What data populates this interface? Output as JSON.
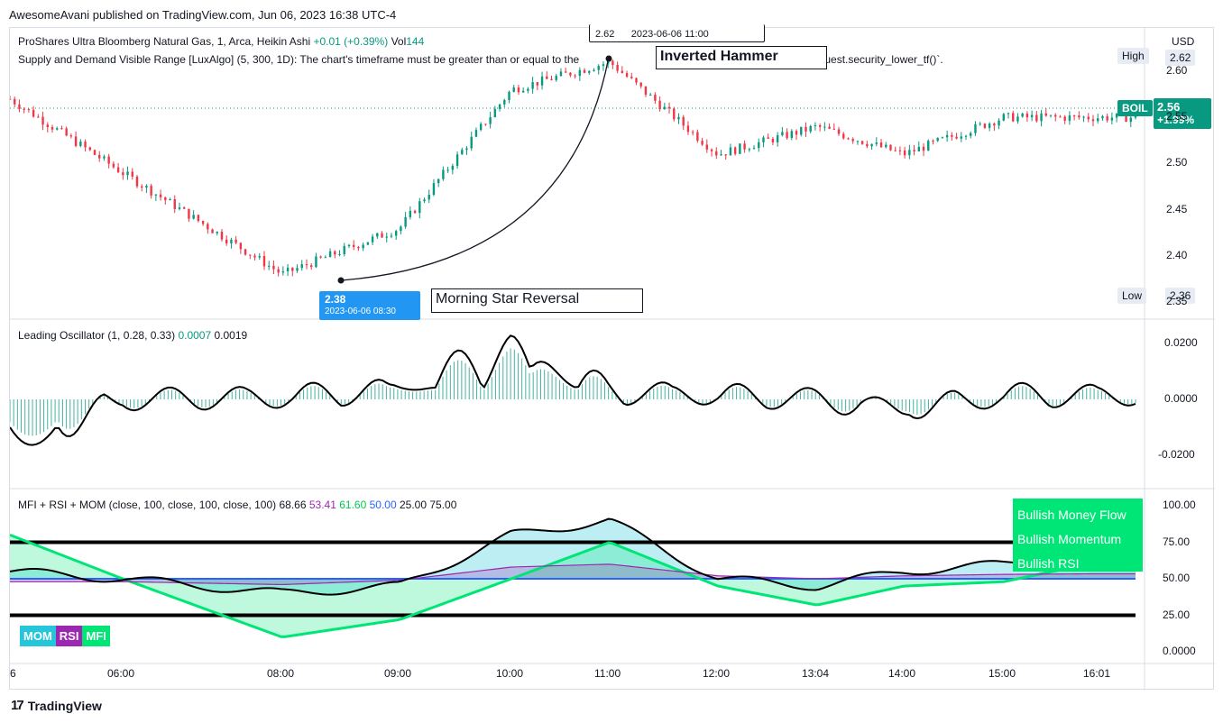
{
  "header": {
    "published": "AwesomeAvani published on TradingView.com, Jun 06, 2023 16:38 UTC-4"
  },
  "footer": {
    "logo_text": "TradingView",
    "logo_icon": "tradingview-logo-icon"
  },
  "price_pane": {
    "symbol_line": "ProShares Ultra Bloomberg Natural Gas, 1, Arca, Heikin Ashi",
    "change": "+0.01 (+0.39%)",
    "vol_label": "Vol",
    "vol_value": "144",
    "indicator_line": "Supply and Demand Visible Range [LuxAlgo] (5, 300, 1D): The chart's timeframe must be greater than or equal to the",
    "indicator_tail": "request.security_lower_tf()`.",
    "currency": "USD",
    "high_label": "High",
    "high_value": "2.62",
    "low_label": "Low",
    "low_value": "2.36",
    "ticker": "BOIL",
    "last_price": "2.56",
    "last_change": "+1.99%",
    "low_marker_price": "2.38",
    "low_marker_time": "2023-06-06 08:30",
    "high_marker_price": "2.62",
    "high_marker_time": "2023-06-06  11:00",
    "pattern_top": "Inverted Hammer",
    "pattern_bottom": "Morning Star Reversal",
    "y_ticks": [
      "2.60",
      "2.55",
      "2.50",
      "2.45",
      "2.40",
      "2.35"
    ]
  },
  "oscillator_pane": {
    "title": "Leading Oscillator (1, 0.28, 0.33)",
    "v1": "0.0007",
    "v2": "0.0019",
    "y_ticks": [
      "0.0200",
      "0.0000",
      "-0.0200"
    ]
  },
  "mfi_pane": {
    "title": "MFI + RSI + MOM (close, 100, close, 100, close, 100)",
    "v_mom": "68.66",
    "v_rsi": "53.41",
    "v_mfi": "61.60",
    "v_mid": "50.00",
    "v_low": "25.00",
    "v_high": "75.00",
    "labels": [
      "Bullish Money Flow",
      "Bullish Momentum",
      "Bullish RSI"
    ],
    "badges": [
      "MOM",
      "RSI",
      "MFI"
    ],
    "y_ticks": [
      "100.00",
      "75.00",
      "50.00",
      "25.00",
      "0.0000"
    ]
  },
  "x_axis": {
    "ticks": [
      "6",
      "06:00",
      "08:00",
      "09:00",
      "10:00",
      "11:00",
      "12:00",
      "13:04",
      "14:00",
      "15:00",
      "16:01"
    ]
  },
  "colors": {
    "up": "#089981",
    "down": "#f23645",
    "mfi": "#00e676",
    "rsi": "#9c27b0",
    "mom_fill": "#26c6da",
    "mid_line": "#2962ff"
  },
  "chart_data": [
    {
      "type": "candlestick",
      "title": "ProShares Ultra Bloomberg Natural Gas, 1, Arca, Heikin Ashi",
      "x": [
        "6",
        "06:00",
        "08:00",
        "09:00",
        "10:00",
        "11:00",
        "12:00",
        "13:04",
        "14:00",
        "15:00",
        "16:01"
      ],
      "close_approx": [
        2.57,
        2.49,
        2.38,
        2.43,
        2.58,
        2.61,
        2.51,
        2.54,
        2.51,
        2.55,
        2.55
      ],
      "ylim": [
        2.35,
        2.63
      ]
    },
    {
      "type": "line",
      "title": "Leading Oscillator (1, 0.28, 0.33)",
      "x": [
        "6",
        "06:00",
        "08:00",
        "09:00",
        "10:00",
        "11:00",
        "12:00",
        "13:04",
        "14:00",
        "15:00",
        "16:01"
      ],
      "values": [
        -0.025,
        0.0,
        0.001,
        0.005,
        0.022,
        0.004,
        0.002,
        0.0,
        -0.005,
        0.002,
        0.0019
      ],
      "ylim": [
        -0.03,
        0.025
      ]
    },
    {
      "type": "area",
      "title": "MFI + RSI + MOM (close, 100, close, 100, close, 100)",
      "x": [
        "6",
        "06:00",
        "08:00",
        "09:00",
        "10:00",
        "11:00",
        "12:00",
        "13:04",
        "14:00",
        "15:00",
        "16:01"
      ],
      "series": [
        {
          "name": "MOM",
          "values": [
            55,
            50,
            40,
            45,
            80,
            90,
            50,
            45,
            55,
            60,
            68.66
          ]
        },
        {
          "name": "RSI",
          "values": [
            48,
            48,
            46,
            49,
            58,
            60,
            52,
            50,
            52,
            53,
            53.41
          ]
        },
        {
          "name": "MFI",
          "values": [
            80,
            50,
            10,
            22,
            50,
            75,
            45,
            32,
            45,
            48,
            61.6
          ]
        }
      ],
      "ylim": [
        0,
        100
      ]
    }
  ]
}
